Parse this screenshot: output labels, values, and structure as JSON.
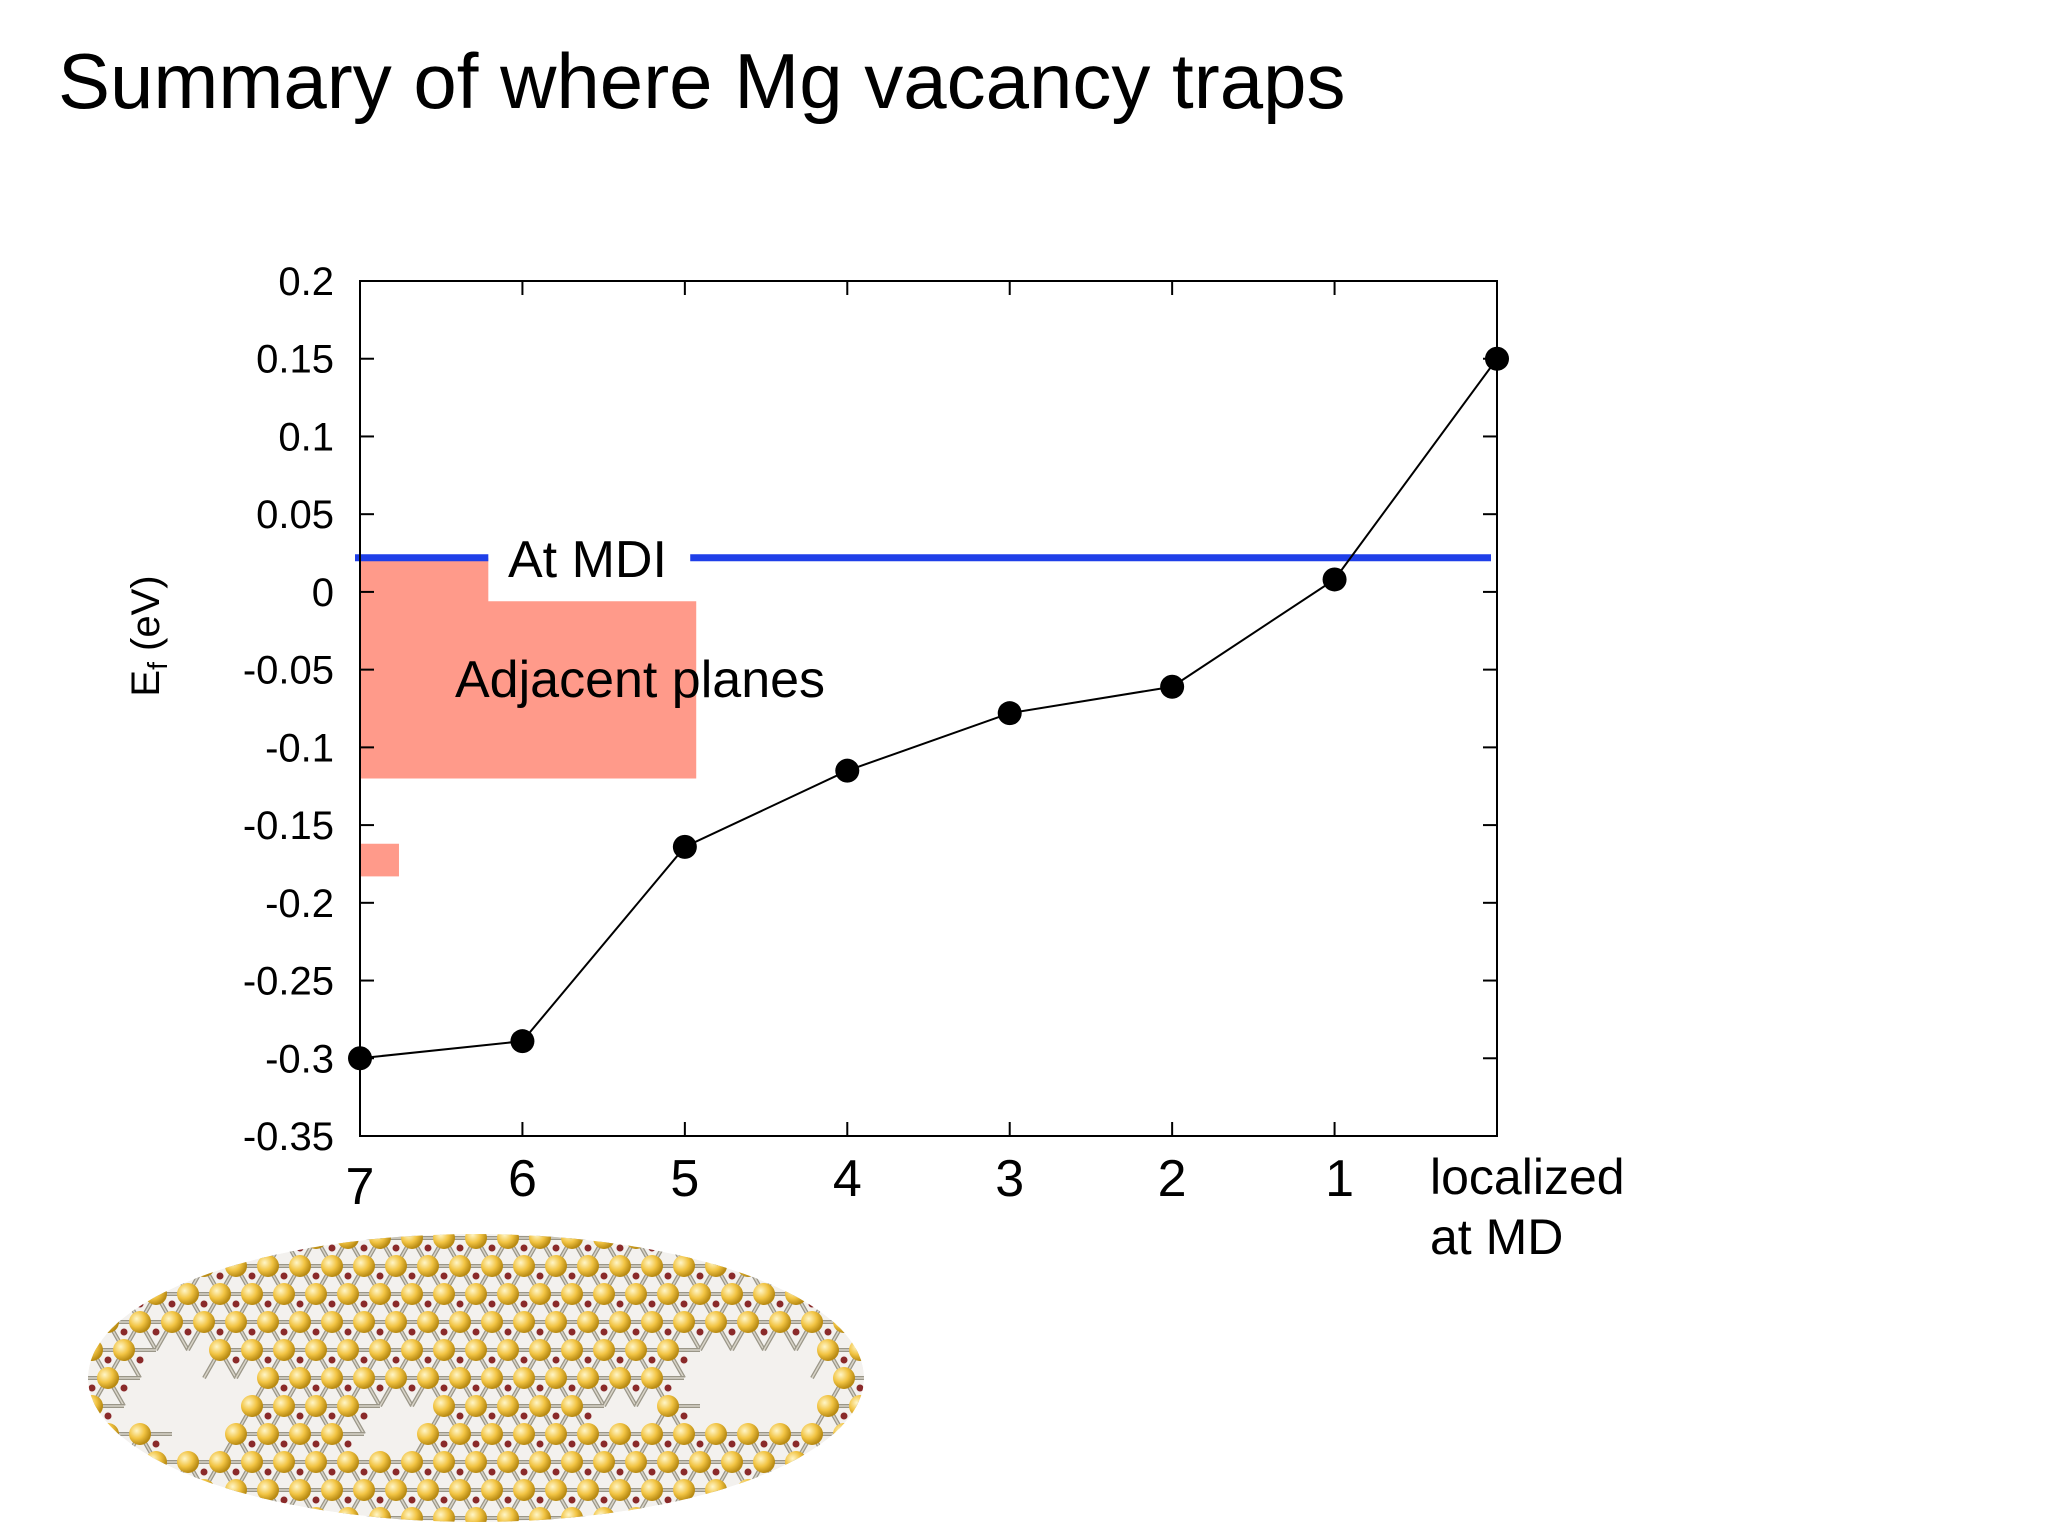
{
  "slide": {
    "title": "Summary of where Mg vacancy traps"
  },
  "chart_data": {
    "type": "line",
    "ylabel": "Ef (eV)",
    "ylabel_main": "E",
    "ylabel_sub": "f",
    "ylabel_unit": " (eV)",
    "ylim": [
      -0.35,
      0.2
    ],
    "yticks": [
      0.2,
      0.15,
      0.1,
      0.05,
      0,
      -0.05,
      -0.1,
      -0.15,
      -0.2,
      -0.25,
      -0.3,
      -0.35
    ],
    "ytick_labels": [
      "0.2",
      "0.15",
      "0.1",
      "0.05",
      "0",
      "-0.05",
      "-0.1",
      "-0.15",
      "-0.2",
      "-0.25",
      "-0.3",
      "-0.35"
    ],
    "xlim": [
      0,
      7
    ],
    "categories": [
      "7",
      "6",
      "5",
      "4",
      "3",
      "2",
      "1"
    ],
    "localized_label": [
      "localized",
      "at MD"
    ],
    "grid": false,
    "series": [
      {
        "x": [
          0,
          1,
          2,
          3,
          4,
          5,
          6,
          7
        ],
        "values": [
          -0.3,
          -0.289,
          -0.164,
          -0.115,
          -0.078,
          -0.061,
          0.008,
          0.15
        ],
        "color": "#000000"
      }
    ],
    "reference_line": {
      "label": "At MDI",
      "y": 0.022,
      "color": "#1f3fe8"
    },
    "band": {
      "label": "Adjacent planes",
      "color": "#ff9a8a",
      "x_from": 0,
      "x_to": 2.07,
      "y_top": 0.022,
      "y_bottom": -0.12,
      "notch_x_from": 0.79,
      "notch_x_to": 2.07,
      "notch_y": -0.006
    },
    "band_small": {
      "color": "#ff9a8a",
      "x_from": 0,
      "x_to": 0.24,
      "y_top": -0.162,
      "y_bottom": -0.183
    }
  },
  "figure": {
    "atom_color": "#f2c443",
    "bond_color": "#8a2a2a"
  }
}
